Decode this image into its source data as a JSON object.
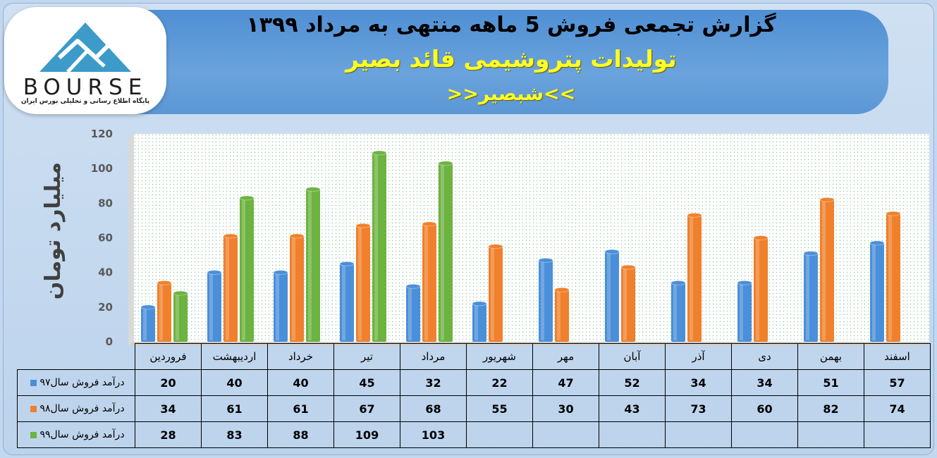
{
  "header": {
    "title_line1": "گزارش تجمعی فروش 5 ماهه منتهی به مرداد ۱۳۹۹",
    "title_line2": "تولیدات پتروشیمی قائد بصیر",
    "title_line3": ">>شبصیر<<"
  },
  "logo": {
    "word": "BOURSE",
    "tagline": "پایگاه اطلاع رسانی و تحلیلی بورس ایران"
  },
  "colors": {
    "series_97": "#4a8fd9",
    "series_98": "#f0802c",
    "series_99": "#6cb33f"
  },
  "chart_data": {
    "type": "bar",
    "title": "",
    "xlabel": "",
    "ylabel": "میلیارد تومان",
    "ylim": [
      0,
      120
    ],
    "yticks": [
      "0",
      "20",
      "40",
      "60",
      "80",
      "100",
      "120"
    ],
    "grid": false,
    "legend": "table",
    "categories": [
      "فروردین",
      "اردیبهشت",
      "خرداد",
      "تیر",
      "مرداد",
      "شهریور",
      "مهر",
      "آبان",
      "آذر",
      "دی",
      "بهمن",
      "اسفند"
    ],
    "series": [
      {
        "name": "درآمد فروش سال۹۷",
        "color": "#4a8fd9",
        "values": [
          20,
          40,
          40,
          45,
          32,
          22,
          47,
          52,
          34,
          34,
          51,
          57
        ],
        "labels": [
          "20",
          "40",
          "40",
          "45",
          "32",
          "22",
          "47",
          "52",
          "34",
          "34",
          "51",
          "57"
        ]
      },
      {
        "name": "درآمد فروش سال۹۸",
        "color": "#f0802c",
        "values": [
          34,
          61,
          61,
          67,
          68,
          55,
          30,
          43,
          73,
          60,
          82,
          74
        ],
        "labels": [
          "34",
          "61",
          "61",
          "67",
          "68",
          "55",
          "30",
          "43",
          "73",
          "60",
          "82",
          "74"
        ]
      },
      {
        "name": "درآمد فروش سال۹۹",
        "color": "#6cb33f",
        "values": [
          28,
          83,
          88,
          109,
          103,
          null,
          null,
          null,
          null,
          null,
          null,
          null
        ],
        "labels": [
          "28",
          "83",
          "88",
          "109",
          "103",
          "",
          "",
          "",
          "",
          "",
          "",
          ""
        ]
      }
    ]
  }
}
